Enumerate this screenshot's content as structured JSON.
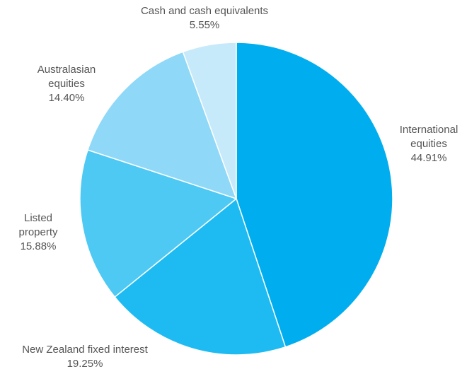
{
  "chart_data": {
    "type": "pie",
    "title": "",
    "start_angle_deg": 0,
    "direction": "clockwise",
    "slices": [
      {
        "label_lines": [
          "International",
          "equities"
        ],
        "value": 44.91,
        "value_text": "44.91%",
        "color": "#00aeef"
      },
      {
        "label_lines": [
          "New Zealand  fixed interest"
        ],
        "value": 19.25,
        "value_text": "19.25%",
        "color": "#1ebbf2"
      },
      {
        "label_lines": [
          "Listed",
          "property"
        ],
        "value": 15.88,
        "value_text": "15.88%",
        "color": "#4dc9f4"
      },
      {
        "label_lines": [
          "Australasian",
          "equities"
        ],
        "value": 14.4,
        "value_text": "14.40%",
        "color": "#8fd8f7"
      },
      {
        "label_lines": [
          "Cash and cash equivalents"
        ],
        "value": 5.55,
        "value_text": "5.55%",
        "color": "#c6eafa"
      }
    ]
  }
}
